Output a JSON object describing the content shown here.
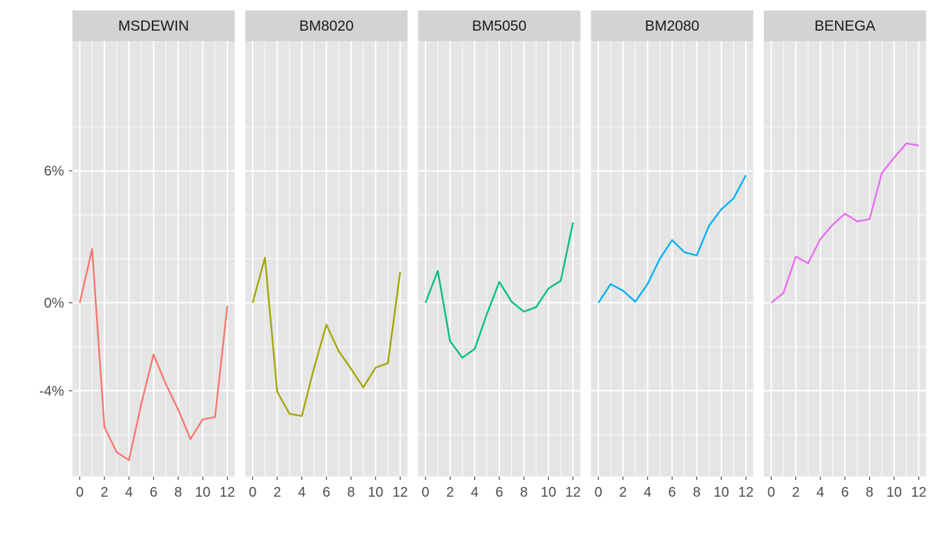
{
  "chart_data": {
    "type": "line",
    "facet": "columns",
    "x": [
      0,
      1,
      2,
      3,
      4,
      5,
      6,
      7,
      8,
      9,
      10,
      11,
      12
    ],
    "x_ticks": [
      0,
      2,
      4,
      6,
      8,
      10,
      12
    ],
    "x_tick_labels": [
      "0",
      "2",
      "4",
      "6",
      "8",
      "10",
      "12"
    ],
    "xlim": [
      -0.6,
      12.6
    ],
    "ylim": [
      -7.9,
      11.9
    ],
    "y_ticks": [
      -4,
      0,
      6
    ],
    "y_tick_labels": [
      "-4%",
      "0%",
      "6%"
    ],
    "y_minor_ticks": [
      -6,
      -2,
      2,
      4,
      8
    ],
    "grid": true,
    "panel_background": "#e5e5e5",
    "strip_background": "#d3d3d3",
    "grid_color": "#ffffff",
    "title": "",
    "xlabel": "",
    "ylabel": "",
    "series": [
      {
        "name": "MSDEWIN",
        "color": "#f8766d",
        "values": [
          0.0,
          2.45,
          -5.65,
          -6.8,
          -7.15,
          -4.6,
          -2.35,
          -3.7,
          -4.85,
          -6.2,
          -5.3,
          -5.2,
          -0.15
        ]
      },
      {
        "name": "BM8020",
        "color": "#a3a500",
        "values": [
          0.0,
          2.05,
          -4.05,
          -5.05,
          -5.15,
          -2.95,
          -1.0,
          -2.2,
          -3.0,
          -3.85,
          -2.95,
          -2.75,
          1.4
        ]
      },
      {
        "name": "BM5050",
        "color": "#00bf7d",
        "values": [
          0.0,
          1.45,
          -1.75,
          -2.5,
          -2.1,
          -0.5,
          0.95,
          0.05,
          -0.4,
          -0.2,
          0.65,
          1.0,
          3.65
        ]
      },
      {
        "name": "BM2080",
        "color": "#00b0f6",
        "values": [
          0.0,
          0.85,
          0.55,
          0.05,
          0.85,
          2.0,
          2.85,
          2.3,
          2.15,
          3.5,
          4.25,
          4.75,
          5.8
        ]
      },
      {
        "name": "BENEGA",
        "color": "#e76bf3",
        "values": [
          0.0,
          0.45,
          2.1,
          1.8,
          2.9,
          3.55,
          4.05,
          3.7,
          3.8,
          5.9,
          6.6,
          7.25,
          7.15
        ]
      }
    ]
  }
}
